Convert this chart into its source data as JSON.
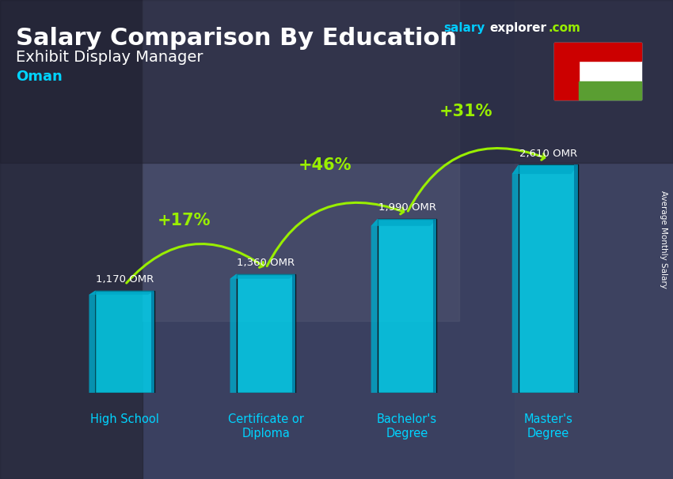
{
  "title_salary": "Salary Comparison By Education",
  "subtitle": "Exhibit Display Manager",
  "country": "Oman",
  "ylabel": "Average Monthly Salary",
  "categories": [
    "High School",
    "Certificate or\nDiploma",
    "Bachelor's\nDegree",
    "Master's\nDegree"
  ],
  "values": [
    1170,
    1360,
    1990,
    2610
  ],
  "value_labels": [
    "1,170 OMR",
    "1,360 OMR",
    "1,990 OMR",
    "2,610 OMR"
  ],
  "pct_labels": [
    "+17%",
    "+46%",
    "+31%"
  ],
  "bar_face_color": "#00d4f0",
  "bar_left_color": "#00a8c8",
  "bar_right_color": "#007aa0",
  "bar_alpha": 0.82,
  "bg_color": "#2a3a5c",
  "title_color": "#ffffff",
  "subtitle_color": "#ffffff",
  "country_color": "#00d4ff",
  "value_color": "#ffffff",
  "pct_color": "#99ee00",
  "arrow_color": "#99ee00",
  "site_salary_color": "#00ccff",
  "site_explorer_color": "#ffffff",
  "site_com_color": "#99ee00",
  "ylim": [
    0,
    3400
  ],
  "xlabel_color": "#00d4ff",
  "flag_red": "#cc0000",
  "flag_white": "#ffffff",
  "flag_green": "#5a9e32"
}
